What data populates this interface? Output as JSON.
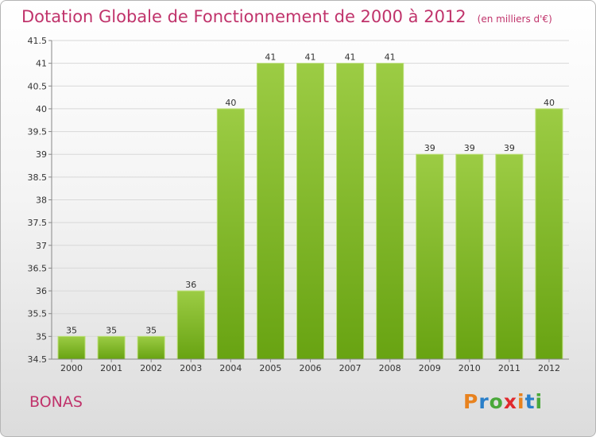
{
  "title": "Dotation Globale de Fonctionnement de 2000 à 2012",
  "unit": "(en milliers d'€)",
  "commune": "BONAS",
  "logo": {
    "text": "Proxiti",
    "letter_colors": [
      "#e8821e",
      "#2a7fc9",
      "#4aa83a",
      "#e0292d",
      "#e8821e",
      "#2a7fc9",
      "#4aa83a"
    ]
  },
  "colors": {
    "bar_top": "#9ccc44",
    "bar_bottom": "#68a312",
    "title": "#c0336b",
    "grid": "#d8d8d8"
  },
  "chart_data": {
    "type": "bar",
    "categories": [
      "2000",
      "2001",
      "2002",
      "2003",
      "2004",
      "2005",
      "2006",
      "2007",
      "2008",
      "2009",
      "2010",
      "2011",
      "2012"
    ],
    "values": [
      35,
      35,
      35,
      36,
      40,
      41,
      41,
      41,
      41,
      39,
      39,
      39,
      40
    ],
    "yticks": [
      "34.5",
      "35",
      "35.5",
      "36",
      "36.5",
      "37",
      "37.5",
      "38",
      "38.5",
      "39",
      "39.5",
      "40",
      "40.5",
      "41",
      "41.5"
    ],
    "ylim": [
      34.5,
      41.5
    ],
    "grid": true,
    "xlabel": "",
    "ylabel": ""
  }
}
